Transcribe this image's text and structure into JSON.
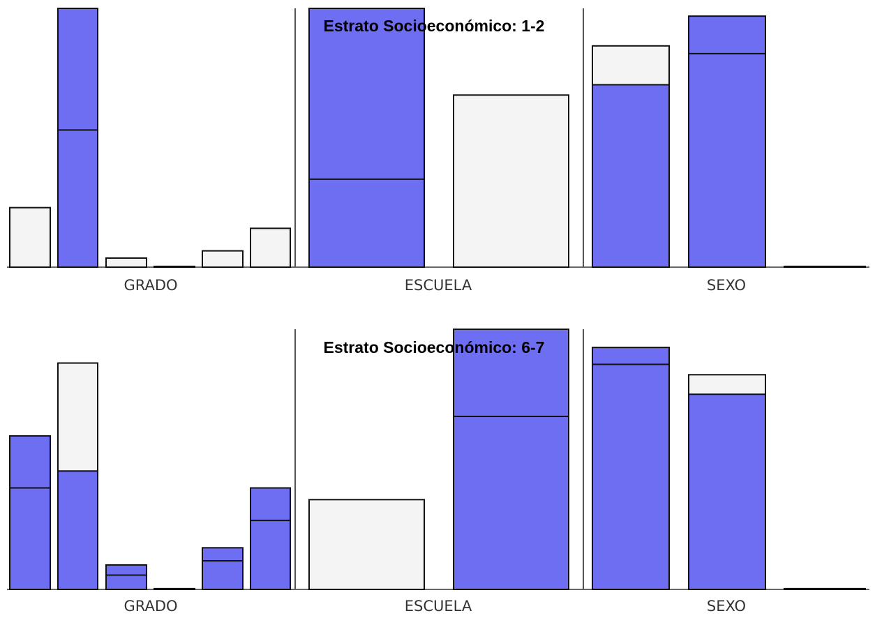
{
  "chart_data": [
    {
      "type": "bar",
      "subtype": "spineplot-highlight",
      "title": "Estrato Socioeconómico: 1-2",
      "scale_max": 100,
      "colors": {
        "highlight": "#6e6ef2",
        "bar": "#f4f4f4",
        "outline": "#111111"
      },
      "groups": [
        {
          "label": "GRADO",
          "bars": [
            {
              "total": 23,
              "highlight": 0,
              "band": 0
            },
            {
              "total": 100,
              "highlight": 100,
              "band": 53
            },
            {
              "total": 3.5,
              "highlight": 0,
              "band": 0
            },
            {
              "total": 0.3,
              "highlight": 0,
              "band": 0
            },
            {
              "total": 6.3,
              "highlight": 0,
              "band": 0
            },
            {
              "total": 15,
              "highlight": 0,
              "band": 0
            }
          ]
        },
        {
          "label": "ESCUELA",
          "bars": [
            {
              "total": 100,
              "highlight": 100,
              "band": 34
            },
            {
              "total": 66.5,
              "highlight": 0,
              "band": 0
            }
          ]
        },
        {
          "label": "SEXO",
          "bars": [
            {
              "total": 85.5,
              "highlight": 70.5,
              "band": 70.5
            },
            {
              "total": 97,
              "highlight": 97,
              "band": 82.5
            },
            {
              "total": 0.3,
              "highlight": 0,
              "band": 0
            }
          ]
        }
      ]
    },
    {
      "type": "bar",
      "subtype": "spineplot-highlight",
      "title": "Estrato Socioeconómico: 6-7",
      "scale_max": 100,
      "colors": {
        "highlight": "#6e6ef2",
        "bar": "#f4f4f4",
        "outline": "#111111"
      },
      "groups": [
        {
          "label": "GRADO",
          "bars": [
            {
              "total": 59,
              "highlight": 59,
              "band": 39
            },
            {
              "total": 87,
              "highlight": 45.5,
              "band": 45.5
            },
            {
              "total": 9.4,
              "highlight": 9.4,
              "band": 5.5
            },
            {
              "total": 0.3,
              "highlight": 0,
              "band": 0
            },
            {
              "total": 16,
              "highlight": 16,
              "band": 11
            },
            {
              "total": 39,
              "highlight": 39,
              "band": 26.5
            }
          ]
        },
        {
          "label": "ESCUELA",
          "bars": [
            {
              "total": 34.5,
              "highlight": 0,
              "band": 0
            },
            {
              "total": 100,
              "highlight": 100,
              "band": 66.5
            }
          ]
        },
        {
          "label": "SEXO",
          "bars": [
            {
              "total": 93,
              "highlight": 93,
              "band": 86.5
            },
            {
              "total": 82.5,
              "highlight": 75,
              "band": 75
            },
            {
              "total": 0.3,
              "highlight": 0,
              "band": 0
            }
          ]
        }
      ]
    }
  ]
}
